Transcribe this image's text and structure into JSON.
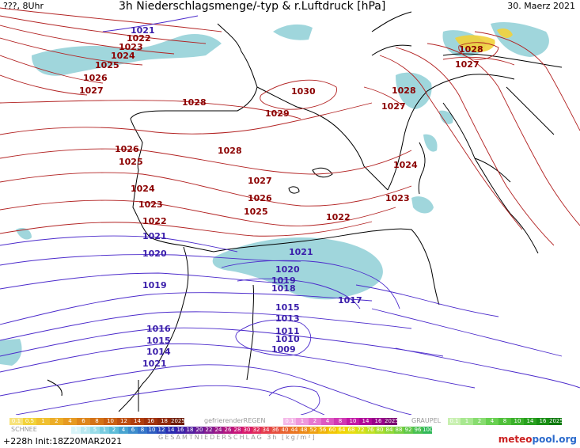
{
  "header": {
    "left": "???, 8Uhr",
    "title": "3h Niederschlagsmenge/-typ & r.Luftdruck [hPa]",
    "date": "30. Maerz 2021"
  },
  "map": {
    "high_labels": [
      "1021",
      "1022",
      "1023",
      "1024",
      "1025",
      "1026",
      "1027",
      "1028",
      "1030",
      "1029",
      "1028",
      "1027",
      "1026",
      "1025",
      "1024",
      "1023",
      "1022",
      "1028",
      "1027",
      "1026",
      "1025",
      "1024",
      "1023",
      "1022",
      "1028",
      "1027"
    ],
    "low_labels": [
      "1021",
      "1020",
      "1019",
      "1017",
      "1016",
      "1015",
      "1014",
      "1021",
      "1020",
      "1019",
      "1018",
      "1017",
      "1015",
      "1013",
      "1011",
      "1010",
      "1009"
    ],
    "isobar_high_color": "#b22222",
    "isobar_low_color": "#4b2acb",
    "coast_color": "#000000",
    "precip_color": "#8fcfd6",
    "snow_color": "#f2d23a"
  },
  "legend": {
    "schnee_label": "SCHNEE",
    "schnee_values": [
      "0.1",
      "0.5",
      "1",
      "2",
      "4",
      "6",
      "8",
      "10",
      "12",
      "14",
      "16",
      "18",
      "2025+"
    ],
    "regen_label": "gefrierenderREGEN",
    "regen_values": [
      "0.1",
      "1",
      "2",
      "4",
      "8",
      "10",
      "14",
      "16",
      "2025+"
    ],
    "graupel_label": "GRAUPEL",
    "graupel_values": [
      "0.1",
      "1",
      "2",
      "4",
      "8",
      "10",
      "14",
      "16",
      "2025+"
    ],
    "gesamt_values": [
      "1",
      "2",
      "5",
      "1",
      "2",
      "4",
      "6",
      "8",
      "10",
      "12",
      "14",
      "16",
      "18",
      "20",
      "22",
      "24",
      "26",
      "28",
      "30",
      "32",
      "34",
      "36",
      "40",
      "44",
      "48",
      "52",
      "56",
      "60",
      "64",
      "68",
      "72",
      "76",
      "80",
      "84",
      "88",
      "92",
      "96",
      "100"
    ],
    "gesamt_label": "GESAMTNIEDERSCHLAG 3h [kg/m²]"
  },
  "footer": {
    "run": "+228h Init:18Z20MAR2021",
    "logo_a": "meteo",
    "logo_b": "pool.org"
  }
}
